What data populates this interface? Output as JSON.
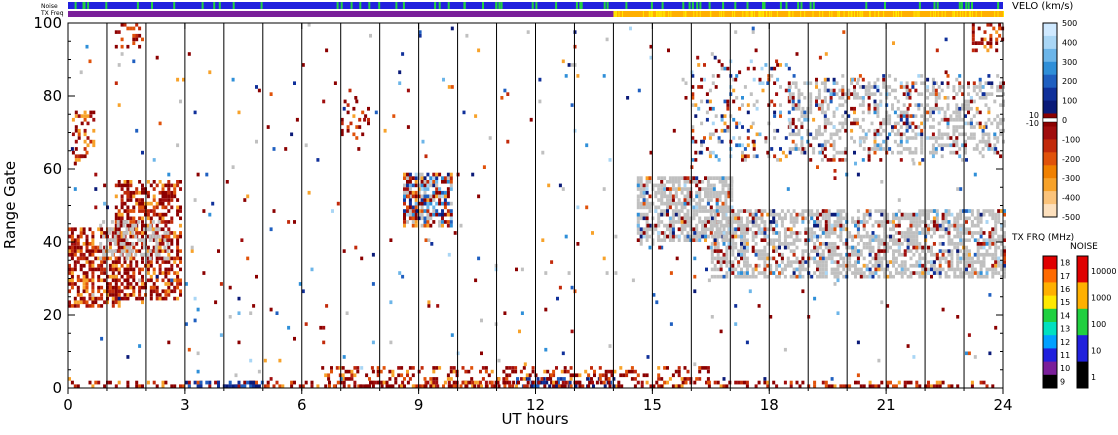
{
  "chart_data": {
    "type": "heatmap",
    "xlabel": "UT hours",
    "ylabel": "Range Gate",
    "xlim": [
      0,
      24
    ],
    "ylim": [
      0,
      100
    ],
    "x_ticks": [
      "0",
      "3",
      "6",
      "9",
      "12",
      "15",
      "18",
      "21",
      "24"
    ],
    "y_ticks": [
      "0",
      "20",
      "40",
      "60",
      "80",
      "100"
    ],
    "hour_gridlines": [
      1,
      2,
      3,
      4,
      5,
      6,
      7,
      8,
      9,
      10,
      11,
      12,
      13,
      14,
      15,
      16,
      17,
      18,
      19,
      20,
      21,
      22,
      23
    ],
    "status_bars": {
      "noise_label": "Noise",
      "txfreq_label": "TX Freq",
      "noise_color": "#2020dd",
      "noise_blip_color": "#20d040",
      "txfreq_segments": [
        {
          "start": 0,
          "end": 14,
          "color": "#7a1f9a"
        },
        {
          "start": 14,
          "end": 24,
          "color": "#ffb000"
        }
      ]
    },
    "velocity_scale": {
      "title": "VELO (km/s)",
      "ticks": [
        "500",
        "400",
        "300",
        "200",
        "100",
        "0",
        "-100",
        "-200",
        "-300",
        "-400",
        "-500"
      ],
      "near_zero_ticks": [
        "10",
        "-10"
      ],
      "colors": [
        "#cfe9ff",
        "#a9d6f5",
        "#6cb5e8",
        "#2f8fd8",
        "#1f5fc0",
        "#10309a",
        "#0a1a78",
        "#8b0000",
        "#a00d0d",
        "#c22a0a",
        "#e0520a",
        "#f08000",
        "#f7a22a",
        "#fbc37a",
        "#fde0bd"
      ]
    },
    "txfreq_scale": {
      "title": "TX FRQ (MHz)",
      "ticks": [
        "18",
        "17",
        "16",
        "15",
        "14",
        "13",
        "12",
        "11",
        "10",
        "9"
      ],
      "colors": [
        "#e00000",
        "#ff6a00",
        "#ffb000",
        "#ffe800",
        "#20d040",
        "#00e0c0",
        "#00a0ff",
        "#2020dd",
        "#7a1f9a",
        "#000000"
      ]
    },
    "noise_scale": {
      "title": "NOISE",
      "ticks": [
        "10000",
        "1000",
        "100",
        "10",
        "1"
      ],
      "colors": [
        "#e00000",
        "#ffb000",
        "#20d040",
        "#2020dd",
        "#000000"
      ]
    },
    "ground_scatter_color": "#c0c0c0",
    "echo_regions": [
      {
        "t0": 0.0,
        "t1": 1.3,
        "g0": 22,
        "g1": 44,
        "type": "neg",
        "density": 0.6
      },
      {
        "t0": 1.2,
        "t1": 2.9,
        "g0": 24,
        "g1": 57,
        "type": "neg",
        "density": 0.55
      },
      {
        "t0": 0.8,
        "t1": 2.6,
        "g0": 35,
        "g1": 46,
        "type": "ground",
        "density": 0.35
      },
      {
        "t0": 0.1,
        "t1": 0.7,
        "g0": 62,
        "g1": 76,
        "type": "neg",
        "density": 0.35
      },
      {
        "t0": 1.2,
        "t1": 1.9,
        "g0": 93,
        "g1": 100,
        "type": "neg",
        "density": 0.25
      },
      {
        "t0": 8.6,
        "t1": 9.8,
        "g0": 44,
        "g1": 59,
        "type": "mixed",
        "density": 0.7
      },
      {
        "t0": 7.0,
        "t1": 7.7,
        "g0": 68,
        "g1": 80,
        "type": "neg",
        "density": 0.2
      },
      {
        "t0": 14.6,
        "t1": 17.0,
        "g0": 40,
        "g1": 58,
        "type": "ground",
        "density": 0.6
      },
      {
        "t0": 14.6,
        "t1": 17.0,
        "g0": 38,
        "g1": 58,
        "type": "mixed",
        "density": 0.2
      },
      {
        "t0": 16.5,
        "t1": 24.0,
        "g0": 30,
        "g1": 49,
        "type": "ground",
        "density": 0.55
      },
      {
        "t0": 16.5,
        "t1": 24.0,
        "g0": 30,
        "g1": 49,
        "type": "mixed",
        "density": 0.18
      },
      {
        "t0": 16.0,
        "t1": 18.5,
        "g0": 62,
        "g1": 90,
        "type": "mixed",
        "density": 0.18
      },
      {
        "t0": 18.5,
        "t1": 24.0,
        "g0": 64,
        "g1": 84,
        "type": "ground",
        "density": 0.3
      },
      {
        "t0": 18.5,
        "t1": 24.0,
        "g0": 62,
        "g1": 86,
        "type": "mixed",
        "density": 0.15
      },
      {
        "t0": 23.2,
        "t1": 24.0,
        "g0": 92,
        "g1": 100,
        "type": "neg",
        "density": 0.4
      },
      {
        "t0": 0.0,
        "t1": 24.0,
        "g0": 0,
        "g1": 2,
        "type": "neg",
        "density": 0.35
      },
      {
        "t0": 3.0,
        "t1": 5.0,
        "g0": 0,
        "g1": 2,
        "type": "pos",
        "density": 0.45
      },
      {
        "t0": 11.5,
        "t1": 14.0,
        "g0": 0,
        "g1": 3,
        "type": "pos",
        "density": 0.4
      },
      {
        "t0": 6.5,
        "t1": 16.5,
        "g0": 0,
        "g1": 6,
        "type": "neg",
        "density": 0.3
      },
      {
        "t0": 0.0,
        "t1": 24.0,
        "g0": 2,
        "g1": 100,
        "type": "mixed",
        "density": 0.012
      }
    ]
  }
}
